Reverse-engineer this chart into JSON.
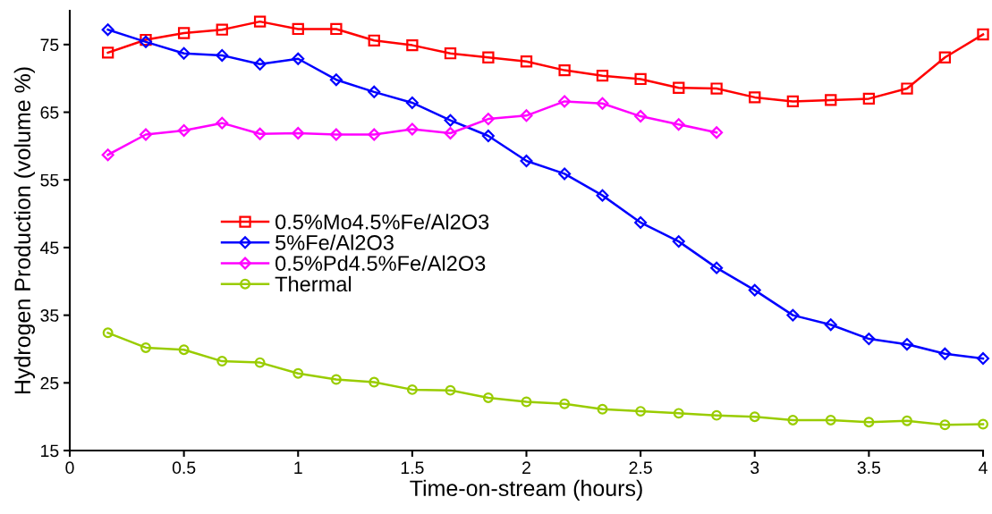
{
  "chart_data": {
    "type": "line",
    "xlabel": "Time-on-stream (hours)",
    "ylabel": "Hydrogen Production (volume %)",
    "xlim": [
      0,
      4
    ],
    "ylim": [
      15,
      80
    ],
    "xticks": [
      0,
      0.5,
      1,
      1.5,
      2,
      2.5,
      3,
      3.5,
      4
    ],
    "yticks": [
      15,
      25,
      35,
      45,
      55,
      65,
      75
    ],
    "grid": false,
    "legend": "center left",
    "line_style": "solid",
    "series": [
      {
        "name": "0.5%Mo4.5%Fe/Al2O3",
        "color": "#ff0000",
        "marker": "square",
        "x": [
          0.167,
          0.333,
          0.5,
          0.667,
          0.833,
          1.0,
          1.167,
          1.333,
          1.5,
          1.667,
          1.833,
          2.0,
          2.167,
          2.333,
          2.5,
          2.667,
          2.833,
          3.0,
          3.167,
          3.333,
          3.5,
          3.667,
          3.833,
          4.0
        ],
        "values": [
          73.8,
          75.7,
          76.7,
          77.2,
          78.4,
          77.3,
          77.3,
          75.6,
          74.9,
          73.7,
          73.1,
          72.5,
          71.2,
          70.4,
          69.9,
          68.6,
          68.5,
          67.2,
          66.6,
          66.8,
          67.0,
          68.5,
          73.1,
          76.5
        ]
      },
      {
        "name": "5%Fe/Al2O3",
        "color": "#0000ff",
        "marker": "diamond",
        "x": [
          0.167,
          0.333,
          0.5,
          0.667,
          0.833,
          1.0,
          1.167,
          1.333,
          1.5,
          1.667,
          1.833,
          2.0,
          2.167,
          2.333,
          2.5,
          2.667,
          2.833,
          3.0,
          3.167,
          3.333,
          3.5,
          3.667,
          3.833,
          4.0
        ],
        "values": [
          77.2,
          75.4,
          73.7,
          73.4,
          72.1,
          72.9,
          69.8,
          68.0,
          66.4,
          63.8,
          61.5,
          57.8,
          55.9,
          52.7,
          48.7,
          45.9,
          42.0,
          38.7,
          35.0,
          33.6,
          31.5,
          30.7,
          29.3,
          28.6
        ]
      },
      {
        "name": "0.5%Pd4.5%Fe/Al2O3",
        "color": "#ff00ff",
        "marker": "diamond",
        "x": [
          0.167,
          0.333,
          0.5,
          0.667,
          0.833,
          1.0,
          1.167,
          1.333,
          1.5,
          1.667,
          1.833,
          2.0,
          2.167,
          2.333,
          2.5,
          2.667,
          2.833
        ],
        "values": [
          58.7,
          61.7,
          62.3,
          63.4,
          61.8,
          61.9,
          61.7,
          61.7,
          62.5,
          61.9,
          64.0,
          64.5,
          66.6,
          66.3,
          64.4,
          63.2,
          62.0
        ]
      },
      {
        "name": "Thermal",
        "color": "#99cc00",
        "marker": "circle",
        "x": [
          0.167,
          0.333,
          0.5,
          0.667,
          0.833,
          1.0,
          1.167,
          1.333,
          1.5,
          1.667,
          1.833,
          2.0,
          2.167,
          2.333,
          2.5,
          2.667,
          2.833,
          3.0,
          3.167,
          3.333,
          3.5,
          3.667,
          3.833,
          4.0
        ],
        "values": [
          32.4,
          30.2,
          29.9,
          28.2,
          28.0,
          26.4,
          25.5,
          25.1,
          24.0,
          23.9,
          22.8,
          22.2,
          21.9,
          21.1,
          20.8,
          20.5,
          20.2,
          20.0,
          19.5,
          19.5,
          19.2,
          19.4,
          18.8,
          18.9
        ]
      }
    ]
  }
}
